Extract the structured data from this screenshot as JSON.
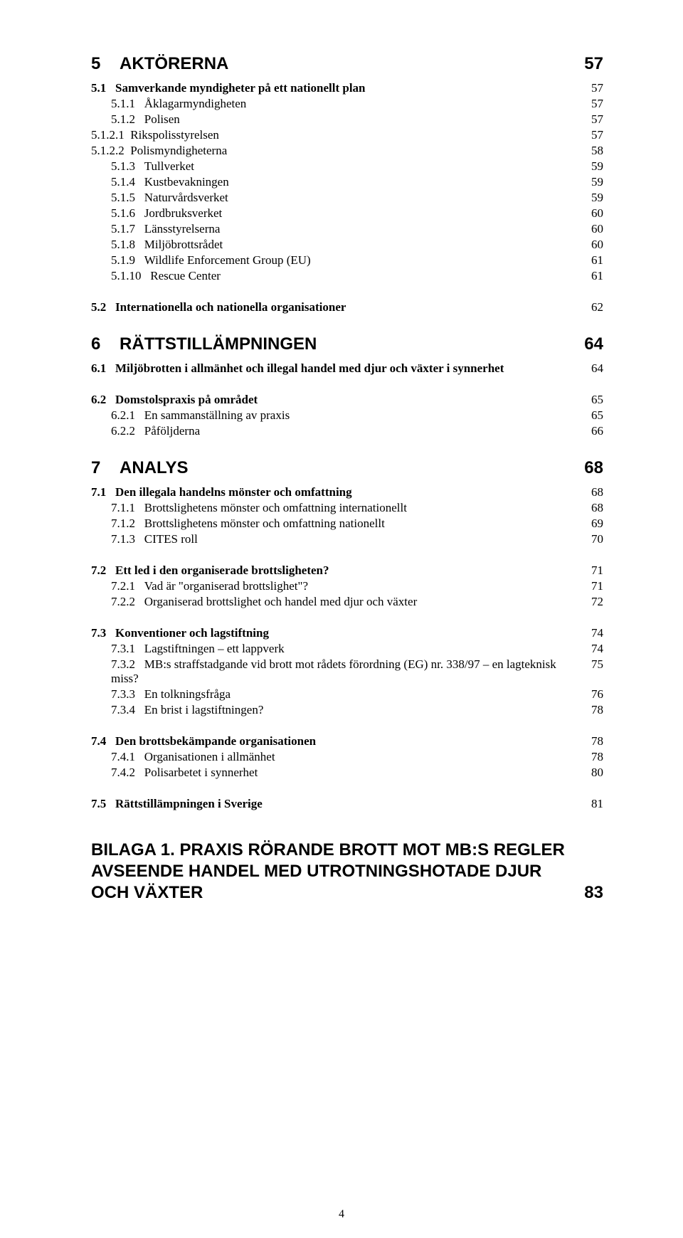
{
  "page_number": "4",
  "colors": {
    "background": "#ffffff",
    "text": "#000000"
  },
  "typography": {
    "chapter_font": "Arial",
    "chapter_size_pt": 18,
    "chapter_weight": "bold",
    "heading_font": "Times New Roman",
    "heading_size_pt": 12.5,
    "heading_weight": "bold",
    "entry_font": "Times New Roman",
    "entry_size_pt": 12.5,
    "entry_weight": "normal"
  },
  "toc": [
    {
      "level": "chapter",
      "num": "5",
      "title": "AKTÖRERNA",
      "page": "57"
    },
    {
      "level": "heading",
      "num": "5.1",
      "title": "Samverkande myndigheter på ett nationellt plan",
      "page": "57"
    },
    {
      "level": "entry",
      "num": "5.1.1",
      "title": "Åklagarmyndigheten",
      "page": "57"
    },
    {
      "level": "entry",
      "num": "5.1.2",
      "title": "Polisen",
      "page": "57"
    },
    {
      "level": "subentry",
      "num": "5.1.2.1",
      "title": "Rikspolisstyrelsen",
      "page": "57"
    },
    {
      "level": "subentry",
      "num": "5.1.2.2",
      "title": "Polismyndigheterna",
      "page": "58"
    },
    {
      "level": "entry",
      "num": "5.1.3",
      "title": "Tullverket",
      "page": "59"
    },
    {
      "level": "entry",
      "num": "5.1.4",
      "title": "Kustbevakningen",
      "page": "59"
    },
    {
      "level": "entry",
      "num": "5.1.5",
      "title": "Naturvårdsverket",
      "page": "59"
    },
    {
      "level": "entry",
      "num": "5.1.6",
      "title": "Jordbruksverket",
      "page": "60"
    },
    {
      "level": "entry",
      "num": "5.1.7",
      "title": "Länsstyrelserna",
      "page": "60"
    },
    {
      "level": "entry",
      "num": "5.1.8",
      "title": "Miljöbrottsrådet",
      "page": "60"
    },
    {
      "level": "entry",
      "num": "5.1.9",
      "title": "Wildlife Enforcement Group (EU)",
      "page": "61"
    },
    {
      "level": "entry",
      "num": "5.1.10",
      "title": "Rescue Center",
      "page": "61"
    },
    {
      "level": "gap"
    },
    {
      "level": "heading",
      "num": "5.2",
      "title": "Internationella och nationella organisationer",
      "page": "62"
    },
    {
      "level": "chapter",
      "num": "6",
      "title": "RÄTTSTILLÄMPNINGEN",
      "page": "64"
    },
    {
      "level": "heading",
      "num": "6.1",
      "title": "Miljöbrotten i allmänhet och illegal handel med djur och växter i synnerhet",
      "page": "64"
    },
    {
      "level": "gap"
    },
    {
      "level": "heading",
      "num": "6.2",
      "title": "Domstolspraxis på området",
      "page": "65"
    },
    {
      "level": "entry",
      "num": "6.2.1",
      "title": "En sammanställning av praxis",
      "page": "65"
    },
    {
      "level": "entry",
      "num": "6.2.2",
      "title": "Påföljderna",
      "page": "66"
    },
    {
      "level": "chapter",
      "num": "7",
      "title": "ANALYS",
      "page": "68"
    },
    {
      "level": "heading",
      "num": "7.1",
      "title": "Den illegala handelns mönster och omfattning",
      "page": "68"
    },
    {
      "level": "entry",
      "num": "7.1.1",
      "title": "Brottslighetens mönster och omfattning internationellt",
      "page": "68"
    },
    {
      "level": "entry",
      "num": "7.1.2",
      "title": "Brottslighetens mönster och omfattning nationellt",
      "page": "69"
    },
    {
      "level": "entry",
      "num": "7.1.3",
      "title": "CITES roll",
      "page": "70"
    },
    {
      "level": "gap"
    },
    {
      "level": "heading",
      "num": "7.2",
      "title": "Ett led i den organiserade brottsligheten?",
      "page": "71"
    },
    {
      "level": "entry",
      "num": "7.2.1",
      "title": "Vad är \"organiserad brottslighet\"?",
      "page": "71"
    },
    {
      "level": "entry",
      "num": "7.2.2",
      "title": "Organiserad brottslighet och handel med djur och växter",
      "page": "72"
    },
    {
      "level": "gap"
    },
    {
      "level": "heading",
      "num": "7.3",
      "title": "Konventioner och lagstiftning",
      "page": "74"
    },
    {
      "level": "entry",
      "num": "7.3.1",
      "title": "Lagstiftningen – ett lappverk",
      "page": "74"
    },
    {
      "level": "entry",
      "num": "7.3.2",
      "title": "MB:s straffstadgande vid brott mot rådets förordning (EG) nr. 338/97 – en lagteknisk miss?",
      "page": "75"
    },
    {
      "level": "entry",
      "num": "7.3.3",
      "title": "En tolkningsfråga",
      "page": "76"
    },
    {
      "level": "entry",
      "num": "7.3.4",
      "title": "En brist i lagstiftningen?",
      "page": "78"
    },
    {
      "level": "gap"
    },
    {
      "level": "heading",
      "num": "7.4",
      "title": "Den brottsbekämpande organisationen",
      "page": "78"
    },
    {
      "level": "entry",
      "num": "7.4.1",
      "title": "Organisationen i allmänhet",
      "page": "78"
    },
    {
      "level": "entry",
      "num": "7.4.2",
      "title": "Polisarbetet i synnerhet",
      "page": "80"
    },
    {
      "level": "gap"
    },
    {
      "level": "heading",
      "num": "7.5",
      "title": "Rättstillämpningen i Sverige",
      "page": "81"
    },
    {
      "level": "bilaga",
      "num": "",
      "title": "BILAGA 1. PRAXIS RÖRANDE BROTT MOT MB:S REGLER AVSEENDE HANDEL MED UTROTNINGSHOTADE DJUR OCH VÄXTER",
      "page": "83"
    }
  ]
}
